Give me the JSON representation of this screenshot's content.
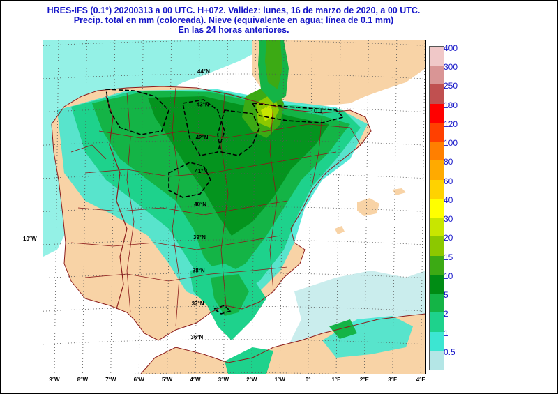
{
  "title": {
    "line1": "HRES-IFS (0.1°) 20200313 a 00 UTC.  H+072. Validez: lunes, 16 de marzo de 2020,  a  00 UTC.",
    "line2": "Precip. total en mm (coloreada). Nieve (equivalente en agua; línea de 0.1 mm)",
    "line3": "En las 24 horas anteriores."
  },
  "map": {
    "meridian_label": "10°W",
    "snow_contour_label": "0.1",
    "lat_labels": [
      {
        "lat": 44,
        "text": "44°N"
      },
      {
        "lat": 43,
        "text": "43°N"
      },
      {
        "lat": 42,
        "text": "42°N"
      },
      {
        "lat": 41,
        "text": "41°N"
      },
      {
        "lat": 40,
        "text": "40°N"
      },
      {
        "lat": 39,
        "text": "39°N"
      },
      {
        "lat": 38,
        "text": "38°N"
      },
      {
        "lat": 37,
        "text": "37°N"
      },
      {
        "lat": 36,
        "text": "36°N"
      }
    ],
    "lon_labels": [
      "9°W",
      "8°W",
      "7°W",
      "6°W",
      "5°W",
      "4°W",
      "3°W",
      "2°W",
      "1°W",
      "0°",
      "1°E",
      "2°E",
      "3°E",
      "4°E"
    ],
    "colors": {
      "land": "#f8d3a6",
      "sea": "#ffffff",
      "border": "#8b1a1a",
      "grid": "#555555",
      "snow_line": "#000000"
    }
  },
  "legend": {
    "levels": [
      {
        "label": "400",
        "color": "#f0c8c8"
      },
      {
        "label": "300",
        "color": "#d99595"
      },
      {
        "label": "250",
        "color": "#c05050"
      },
      {
        "label": "180",
        "color": "#ff0000"
      },
      {
        "label": "120",
        "color": "#ff4000"
      },
      {
        "label": "100",
        "color": "#ff7f00"
      },
      {
        "label": "80",
        "color": "#ffaa00"
      },
      {
        "label": "60",
        "color": "#ffd200"
      },
      {
        "label": "40",
        "color": "#ffff00"
      },
      {
        "label": "30",
        "color": "#c8e600"
      },
      {
        "label": "20",
        "color": "#8cc800"
      },
      {
        "label": "15",
        "color": "#3caa14"
      },
      {
        "label": "10",
        "color": "#008c14"
      },
      {
        "label": "5",
        "color": "#14b446"
      },
      {
        "label": "2",
        "color": "#1ed28c"
      },
      {
        "label": "1",
        "color": "#3ce6d2"
      },
      {
        "label": "0.5",
        "color": "#b4e6e6"
      }
    ]
  }
}
